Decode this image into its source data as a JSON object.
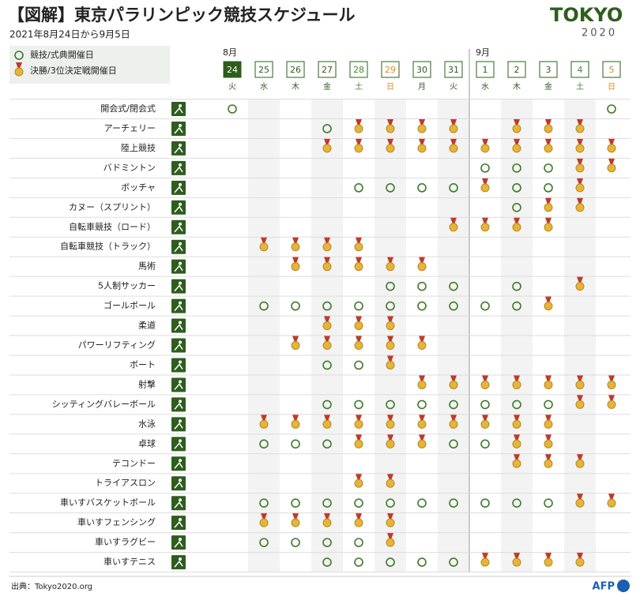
{
  "header": {
    "title": "【図解】東京パラリンピック競技スケジュール",
    "subtitle": "2021年8月24日から9月5日",
    "logo": {
      "word": "TOKYO",
      "year": "2020"
    }
  },
  "legend": [
    {
      "mark": "circle",
      "label": "競技/式典開催日"
    },
    {
      "mark": "medal",
      "label": "決勝/3位決定戦開催日"
    }
  ],
  "months": [
    {
      "name": "8月",
      "days": [
        {
          "day": "24",
          "weekday": "火",
          "color": "#2e5d1e",
          "highlight": true
        },
        {
          "day": "25",
          "weekday": "水",
          "color": "#2e5d1e"
        },
        {
          "day": "26",
          "weekday": "木",
          "color": "#2e5d1e"
        },
        {
          "day": "27",
          "weekday": "金",
          "color": "#2e5d1e"
        },
        {
          "day": "28",
          "weekday": "土",
          "color": "#3f8a2a"
        },
        {
          "day": "29",
          "weekday": "日",
          "color": "#e08a1e"
        },
        {
          "day": "30",
          "weekday": "月",
          "color": "#2e5d1e"
        },
        {
          "day": "31",
          "weekday": "火",
          "color": "#2e5d1e"
        }
      ]
    },
    {
      "name": "9月",
      "days": [
        {
          "day": "1",
          "weekday": "水",
          "color": "#2e5d1e"
        },
        {
          "day": "2",
          "weekday": "木",
          "color": "#2e5d1e"
        },
        {
          "day": "3",
          "weekday": "金",
          "color": "#2e5d1e"
        },
        {
          "day": "4",
          "weekday": "土",
          "color": "#3f8a2a"
        },
        {
          "day": "5",
          "weekday": "日",
          "color": "#e08a1e"
        }
      ]
    }
  ],
  "sports": [
    {
      "name": "開会式/閉会式",
      "cells": [
        "circle",
        null,
        null,
        null,
        null,
        null,
        null,
        null,
        null,
        null,
        null,
        null,
        "circle"
      ]
    },
    {
      "name": "アーチェリー",
      "cells": [
        null,
        null,
        null,
        "circle",
        "medal",
        "medal",
        "medal",
        "medal",
        null,
        "medal",
        "medal",
        "medal",
        null
      ]
    },
    {
      "name": "陸上競技",
      "cells": [
        null,
        null,
        null,
        "medal",
        "medal",
        "medal",
        "medal",
        "medal",
        "medal",
        "medal",
        "medal",
        "medal",
        "medal"
      ]
    },
    {
      "name": "バドミントン",
      "cells": [
        null,
        null,
        null,
        null,
        null,
        null,
        null,
        null,
        "circle",
        "circle",
        "circle",
        "medal",
        "medal"
      ]
    },
    {
      "name": "ボッチャ",
      "cells": [
        null,
        null,
        null,
        null,
        "circle",
        "circle",
        "circle",
        "circle",
        "medal",
        "circle",
        "circle",
        "medal",
        null
      ]
    },
    {
      "name": "カヌー（スプリント）",
      "cells": [
        null,
        null,
        null,
        null,
        null,
        null,
        null,
        null,
        null,
        "circle",
        "medal",
        "medal",
        null
      ]
    },
    {
      "name": "自転車競技（ロード）",
      "cells": [
        null,
        null,
        null,
        null,
        null,
        null,
        null,
        "medal",
        "medal",
        "medal",
        "medal",
        null,
        null
      ]
    },
    {
      "name": "自転車競技（トラック）",
      "cells": [
        null,
        "medal",
        "medal",
        "medal",
        "medal",
        null,
        null,
        null,
        null,
        null,
        null,
        null,
        null
      ]
    },
    {
      "name": "馬術",
      "cells": [
        null,
        null,
        "medal",
        "medal",
        "medal",
        "medal",
        "medal",
        null,
        null,
        null,
        null,
        null,
        null
      ]
    },
    {
      "name": "5人制サッカー",
      "cells": [
        null,
        null,
        null,
        null,
        null,
        "circle",
        "circle",
        "circle",
        null,
        "circle",
        null,
        "medal",
        null
      ]
    },
    {
      "name": "ゴールボール",
      "cells": [
        null,
        "circle",
        "circle",
        "circle",
        "circle",
        "circle",
        "circle",
        "circle",
        "circle",
        "circle",
        "medal",
        null,
        null
      ]
    },
    {
      "name": "柔道",
      "cells": [
        null,
        null,
        null,
        "medal",
        "medal",
        "medal",
        null,
        null,
        null,
        null,
        null,
        null,
        null
      ]
    },
    {
      "name": "パワーリフティング",
      "cells": [
        null,
        null,
        "medal",
        "medal",
        "medal",
        "medal",
        "medal",
        null,
        null,
        null,
        null,
        null,
        null
      ]
    },
    {
      "name": "ボート",
      "cells": [
        null,
        null,
        null,
        "circle",
        "circle",
        "medal",
        null,
        null,
        null,
        null,
        null,
        null,
        null
      ]
    },
    {
      "name": "射撃",
      "cells": [
        null,
        null,
        null,
        null,
        null,
        null,
        "medal",
        "medal",
        "medal",
        "medal",
        "medal",
        "medal",
        "medal"
      ]
    },
    {
      "name": "シッティングバレーボール",
      "cells": [
        null,
        null,
        null,
        "circle",
        "circle",
        "circle",
        "circle",
        "circle",
        "circle",
        "circle",
        "circle",
        "medal",
        "medal"
      ]
    },
    {
      "name": "水泳",
      "cells": [
        null,
        "medal",
        "medal",
        "medal",
        "medal",
        "medal",
        "medal",
        "medal",
        "medal",
        "medal",
        "medal",
        null,
        null
      ]
    },
    {
      "name": "卓球",
      "cells": [
        null,
        "circle",
        "circle",
        "circle",
        "medal",
        "medal",
        "medal",
        "circle",
        "circle",
        "medal",
        "medal",
        null,
        null
      ]
    },
    {
      "name": "テコンドー",
      "cells": [
        null,
        null,
        null,
        null,
        null,
        null,
        null,
        null,
        null,
        "medal",
        "medal",
        "medal",
        null
      ]
    },
    {
      "name": "トライアスロン",
      "cells": [
        null,
        null,
        null,
        null,
        "medal",
        "medal",
        null,
        null,
        null,
        null,
        null,
        null,
        null
      ]
    },
    {
      "name": "車いすバスケットボール",
      "cells": [
        null,
        "circle",
        "circle",
        "circle",
        "circle",
        "circle",
        "circle",
        "circle",
        "circle",
        "circle",
        "circle",
        "medal",
        "medal"
      ]
    },
    {
      "name": "車いすフェンシング",
      "cells": [
        null,
        "medal",
        "medal",
        "medal",
        "medal",
        "medal",
        null,
        null,
        null,
        null,
        null,
        null,
        null
      ]
    },
    {
      "name": "車いすラグビー",
      "cells": [
        null,
        "circle",
        "circle",
        "circle",
        "circle",
        "medal",
        null,
        null,
        null,
        null,
        null,
        null,
        null
      ]
    },
    {
      "name": "車いすテニス",
      "cells": [
        null,
        null,
        null,
        "circle",
        "circle",
        "circle",
        "circle",
        "circle",
        "medal",
        "medal",
        "medal",
        "medal",
        null
      ]
    }
  ],
  "footer": {
    "source": "出典：Tokyo2020.org",
    "credit": "AFP"
  }
}
